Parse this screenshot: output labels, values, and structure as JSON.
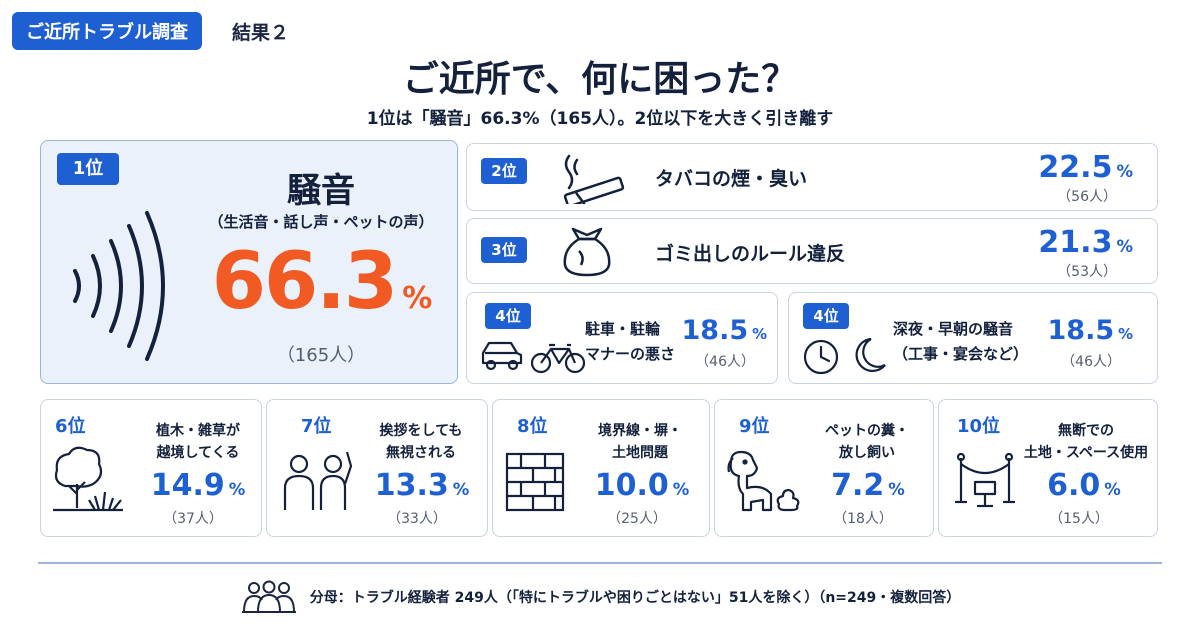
{
  "header": {
    "badge": "ご近所トラブル調査",
    "tag": "結果２",
    "title": "ご近所で、何に困った？",
    "lead": "1位は「騒音」66.3%（165人）。2位以下を大きく引き離す"
  },
  "chart_data": {
    "type": "table",
    "unit": "%",
    "rows": [
      {
        "rank": "1位",
        "label": "騒音",
        "sublabel": "（生活音・話し声・ペットの声）",
        "value": 66.3,
        "value_text": "66.3",
        "count": "（165人）",
        "icon": "sound-waves-icon"
      },
      {
        "rank": "2位",
        "label": "タバコの煙・臭い",
        "value": 22.5,
        "value_text": "22.5",
        "count": "（56人）",
        "icon": "cigarette-icon"
      },
      {
        "rank": "3位",
        "label": "ゴミ出しのルール違反",
        "value": 21.3,
        "value_text": "21.3",
        "count": "（53人）",
        "icon": "garbage-bag-icon"
      },
      {
        "rank": "4位",
        "label_lines": [
          "駐車・駐輪",
          "マナーの悪さ"
        ],
        "value": 18.5,
        "value_text": "18.5",
        "count": "（46人）",
        "icon": "car-bicycle-icon"
      },
      {
        "rank": "4位",
        "label_lines": [
          "深夜・早朝の騒音",
          "（工事・宴会など）"
        ],
        "value": 18.5,
        "value_text": "18.5",
        "count": "（46人）",
        "icon": "clock-moon-icon"
      },
      {
        "rank": "6位",
        "label_lines": [
          "植木・雑草が",
          "越境してくる"
        ],
        "value": 14.9,
        "value_text": "14.9",
        "count": "（37人）",
        "icon": "tree-grass-icon"
      },
      {
        "rank": "7位",
        "label_lines": [
          "挨拶をしても",
          "無視される"
        ],
        "value": 13.3,
        "value_text": "13.3",
        "count": "（33人）",
        "icon": "people-icon"
      },
      {
        "rank": "8位",
        "label_lines": [
          "境界線・塀・",
          "土地問題"
        ],
        "value": 10.0,
        "value_text": "10.0",
        "count": "（25人）",
        "icon": "brick-wall-icon"
      },
      {
        "rank": "9位",
        "label_lines": [
          "ペットの糞・",
          "放し飼い"
        ],
        "value": 7.2,
        "value_text": "7.2",
        "count": "（18人）",
        "icon": "dog-icon"
      },
      {
        "rank": "10位",
        "label_lines": [
          "無断での",
          "土地・スペース使用"
        ],
        "value": 6.0,
        "value_text": "6.0",
        "count": "（15人）",
        "icon": "rope-barrier-icon"
      }
    ]
  },
  "footer": {
    "note": "分母：トラブル経験者 249人（「特にトラブルや困りごとはない」51人を除く）（n=249・複数回答）",
    "icon": "group-icon"
  },
  "colors": {
    "accent": "#1e5fd1",
    "highlight": "#f15a22",
    "dark": "#14213d"
  }
}
